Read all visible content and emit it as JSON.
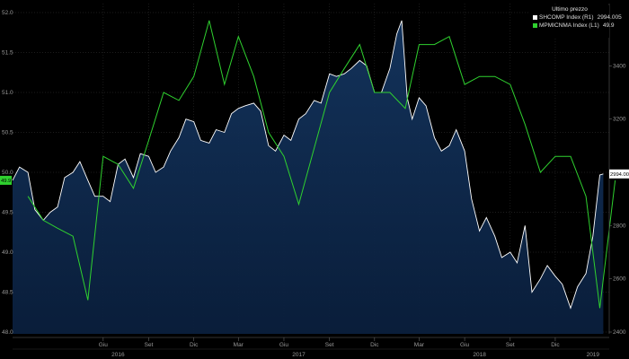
{
  "legend": {
    "title": "Ultimo prezzo",
    "items": [
      {
        "label": "SHCOMP Index  (R1)",
        "value": "2994.005",
        "color": "#ffffff"
      },
      {
        "label": "MPMICNMA Index  (L1)",
        "value": "49.9",
        "color": "#2fd12f"
      }
    ]
  },
  "chart_data": {
    "type": "line",
    "left_axis": {
      "min": 48.0,
      "max": 52.0,
      "ticks": [
        "48.0",
        "48.5",
        "49.0",
        "49.5",
        "50.0",
        "50.5",
        "51.0",
        "51.5",
        "52.0"
      ]
    },
    "right_axis": {
      "min": 2400,
      "max": 3600,
      "ticks": [
        "2400",
        "2600",
        "2800",
        "3000",
        "3200",
        "3400"
      ]
    },
    "x_range": [
      "2015-12-01",
      "2019-03-20"
    ],
    "x_ticks": [
      {
        "label": "Giu",
        "date": "2016-06-01"
      },
      {
        "label": "Set",
        "date": "2016-09-01"
      },
      {
        "label": "Dic",
        "date": "2016-12-01"
      },
      {
        "label": "Mar",
        "date": "2017-03-01"
      },
      {
        "label": "Giu",
        "date": "2017-06-01"
      },
      {
        "label": "Set",
        "date": "2017-09-01"
      },
      {
        "label": "Dic",
        "date": "2017-12-01"
      },
      {
        "label": "Mar",
        "date": "2018-03-01"
      },
      {
        "label": "Giu",
        "date": "2018-06-01"
      },
      {
        "label": "Set",
        "date": "2018-09-01"
      },
      {
        "label": "Dic",
        "date": "2018-12-01"
      }
    ],
    "years": [
      {
        "label": "2016",
        "date": "2016-07-01"
      },
      {
        "label": "2017",
        "date": "2017-07-01"
      },
      {
        "label": "2018",
        "date": "2018-07-01"
      },
      {
        "label": "2019",
        "date": "2019-02-15"
      }
    ],
    "grid": true,
    "legend_position": "top-right",
    "series": [
      {
        "name": "SHCOMP Index (R1)",
        "axis": "right",
        "style": "white line with navy area fill",
        "color": "#ffffff",
        "fill": "#0e2a52",
        "points": [
          [
            "2015-12-01",
            2970
          ],
          [
            "2015-12-15",
            3020
          ],
          [
            "2016-01-01",
            3000
          ],
          [
            "2016-01-15",
            2860
          ],
          [
            "2016-02-01",
            2820
          ],
          [
            "2016-02-15",
            2850
          ],
          [
            "2016-03-01",
            2870
          ],
          [
            "2016-03-15",
            2980
          ],
          [
            "2016-04-01",
            3000
          ],
          [
            "2016-04-15",
            3040
          ],
          [
            "2016-05-01",
            2970
          ],
          [
            "2016-05-15",
            2910
          ],
          [
            "2016-06-01",
            2910
          ],
          [
            "2016-06-15",
            2890
          ],
          [
            "2016-07-01",
            3030
          ],
          [
            "2016-07-15",
            3050
          ],
          [
            "2016-08-01",
            2980
          ],
          [
            "2016-08-15",
            3070
          ],
          [
            "2016-09-01",
            3060
          ],
          [
            "2016-09-15",
            3000
          ],
          [
            "2016-10-01",
            3020
          ],
          [
            "2016-10-15",
            3080
          ],
          [
            "2016-11-01",
            3130
          ],
          [
            "2016-11-15",
            3200
          ],
          [
            "2016-12-01",
            3190
          ],
          [
            "2016-12-15",
            3120
          ],
          [
            "2017-01-01",
            3110
          ],
          [
            "2017-01-15",
            3160
          ],
          [
            "2017-02-01",
            3150
          ],
          [
            "2017-02-15",
            3220
          ],
          [
            "2017-03-01",
            3240
          ],
          [
            "2017-03-15",
            3250
          ],
          [
            "2017-04-01",
            3260
          ],
          [
            "2017-04-15",
            3230
          ],
          [
            "2017-05-01",
            3100
          ],
          [
            "2017-05-15",
            3080
          ],
          [
            "2017-06-01",
            3140
          ],
          [
            "2017-06-15",
            3120
          ],
          [
            "2017-07-01",
            3200
          ],
          [
            "2017-07-15",
            3220
          ],
          [
            "2017-08-01",
            3270
          ],
          [
            "2017-08-15",
            3260
          ],
          [
            "2017-09-01",
            3370
          ],
          [
            "2017-09-15",
            3360
          ],
          [
            "2017-10-01",
            3370
          ],
          [
            "2017-10-15",
            3390
          ],
          [
            "2017-11-01",
            3420
          ],
          [
            "2017-11-15",
            3400
          ],
          [
            "2017-12-01",
            3300
          ],
          [
            "2017-12-15",
            3300
          ],
          [
            "2018-01-01",
            3390
          ],
          [
            "2018-01-15",
            3520
          ],
          [
            "2018-01-25",
            3570
          ],
          [
            "2018-02-05",
            3280
          ],
          [
            "2018-02-15",
            3200
          ],
          [
            "2018-03-01",
            3280
          ],
          [
            "2018-03-15",
            3250
          ],
          [
            "2018-04-01",
            3130
          ],
          [
            "2018-04-15",
            3080
          ],
          [
            "2018-05-01",
            3100
          ],
          [
            "2018-05-15",
            3160
          ],
          [
            "2018-06-01",
            3080
          ],
          [
            "2018-06-15",
            2900
          ],
          [
            "2018-07-01",
            2780
          ],
          [
            "2018-07-15",
            2830
          ],
          [
            "2018-08-01",
            2760
          ],
          [
            "2018-08-15",
            2680
          ],
          [
            "2018-09-01",
            2700
          ],
          [
            "2018-09-15",
            2660
          ],
          [
            "2018-10-01",
            2800
          ],
          [
            "2018-10-15",
            2550
          ],
          [
            "2018-11-01",
            2600
          ],
          [
            "2018-11-15",
            2650
          ],
          [
            "2018-12-01",
            2610
          ],
          [
            "2018-12-15",
            2580
          ],
          [
            "2019-01-01",
            2490
          ],
          [
            "2019-01-15",
            2570
          ],
          [
            "2019-02-01",
            2620
          ],
          [
            "2019-02-15",
            2760
          ],
          [
            "2019-03-01",
            2990
          ],
          [
            "2019-03-08",
            2994
          ]
        ]
      },
      {
        "name": "MPMICNMA Index (L1)",
        "axis": "left",
        "style": "green line",
        "color": "#2fd12f",
        "points": [
          [
            "2016-01-01",
            49.7
          ],
          [
            "2016-02-01",
            49.4
          ],
          [
            "2016-03-01",
            49.3
          ],
          [
            "2016-04-01",
            49.2
          ],
          [
            "2016-05-01",
            48.4
          ],
          [
            "2016-06-01",
            50.2
          ],
          [
            "2016-07-01",
            50.1
          ],
          [
            "2016-08-01",
            49.8
          ],
          [
            "2016-09-01",
            50.4
          ],
          [
            "2016-10-01",
            51.0
          ],
          [
            "2016-11-01",
            50.9
          ],
          [
            "2016-12-01",
            51.2
          ],
          [
            "2017-01-01",
            51.9
          ],
          [
            "2017-02-01",
            51.1
          ],
          [
            "2017-03-01",
            51.7
          ],
          [
            "2017-04-01",
            51.2
          ],
          [
            "2017-05-01",
            50.5
          ],
          [
            "2017-06-01",
            50.2
          ],
          [
            "2017-07-01",
            49.6
          ],
          [
            "2017-08-01",
            50.3
          ],
          [
            "2017-09-01",
            51.0
          ],
          [
            "2017-10-01",
            51.3
          ],
          [
            "2017-11-01",
            51.6
          ],
          [
            "2017-12-01",
            51.0
          ],
          [
            "2018-01-01",
            51.0
          ],
          [
            "2018-02-01",
            50.8
          ],
          [
            "2018-03-01",
            51.6
          ],
          [
            "2018-04-01",
            51.6
          ],
          [
            "2018-05-01",
            51.7
          ],
          [
            "2018-06-01",
            51.1
          ],
          [
            "2018-07-01",
            51.2
          ],
          [
            "2018-08-01",
            51.2
          ],
          [
            "2018-09-01",
            51.1
          ],
          [
            "2018-10-01",
            50.6
          ],
          [
            "2018-11-01",
            50.0
          ],
          [
            "2018-12-01",
            50.2
          ],
          [
            "2019-01-01",
            50.2
          ],
          [
            "2019-02-01",
            49.7
          ],
          [
            "2019-03-01",
            48.3
          ],
          [
            "2019-04-01",
            49.9
          ]
        ]
      }
    ],
    "last_labels": [
      {
        "axis": "right",
        "text": "2994.005"
      },
      {
        "axis": "left",
        "text": "49.9"
      }
    ]
  }
}
